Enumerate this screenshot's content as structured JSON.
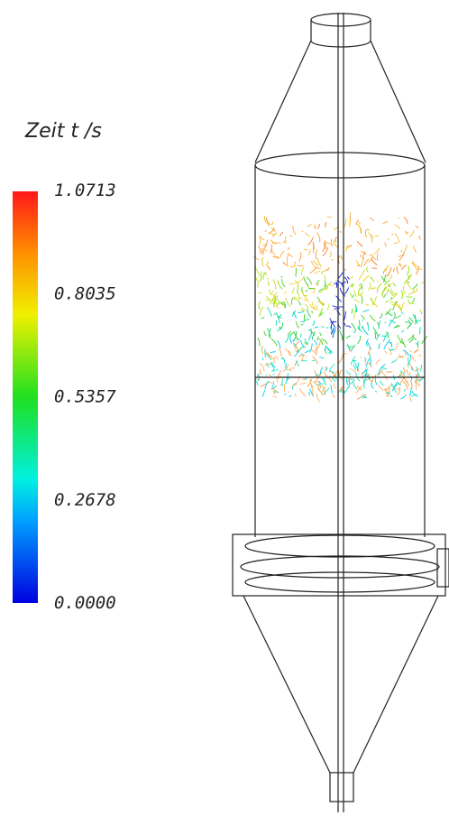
{
  "legend": {
    "title": "Zeit t /s",
    "ticks": [
      "1.0713",
      "0.8035",
      "0.5357",
      "0.2678",
      "0.0000"
    ]
  }
}
